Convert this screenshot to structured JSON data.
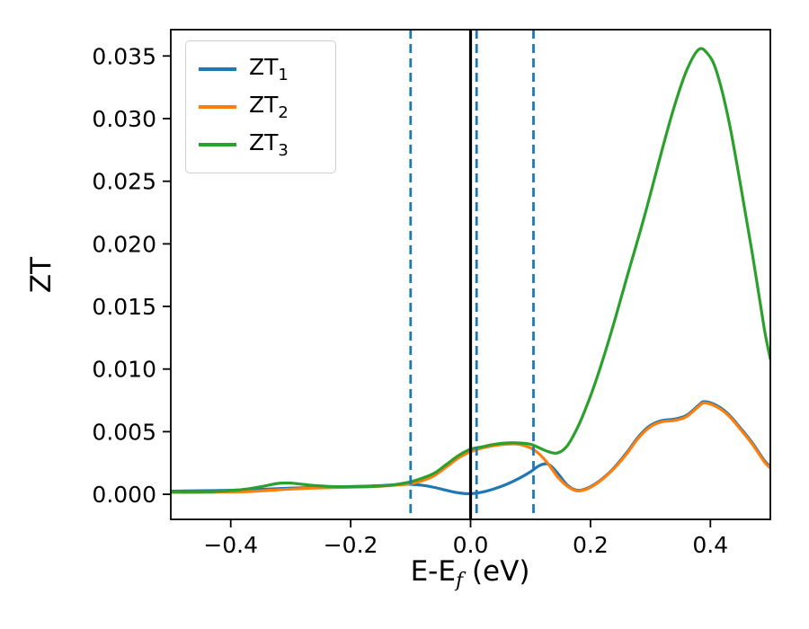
{
  "figure_bg": "#ffffff",
  "chart_data": {
    "type": "line",
    "title": "",
    "ylabel": "ZT",
    "xlabel_parts": {
      "pre": "E-E",
      "sub": "f",
      "post": " (eV)"
    },
    "xlim": [
      -0.5,
      0.5
    ],
    "ylim": [
      -0.002,
      0.0371
    ],
    "grid": false,
    "legend_position": "upper left",
    "x_ticks": [
      -0.4,
      -0.2,
      0.0,
      0.2,
      0.4
    ],
    "x_tick_labels": [
      "−0.4",
      "−0.2",
      "0.0",
      "0.2",
      "0.4"
    ],
    "y_ticks": [
      0.0,
      0.005,
      0.01,
      0.015,
      0.02,
      0.025,
      0.03,
      0.035
    ],
    "y_tick_labels": [
      "0.000",
      "0.005",
      "0.010",
      "0.015",
      "0.020",
      "0.025",
      "0.030",
      "0.035"
    ],
    "vlines": [
      {
        "x": -0.1,
        "style": "dashed",
        "color": "#1f77b4"
      },
      {
        "x": 0.0,
        "style": "solid",
        "color": "#000000"
      },
      {
        "x": 0.01,
        "style": "dashed",
        "color": "#1f77b4"
      },
      {
        "x": 0.105,
        "style": "dashed",
        "color": "#1f77b4"
      }
    ],
    "series": [
      {
        "name": "ZT1",
        "label_base": "ZT",
        "label_sub": "1",
        "color": "#1f77b4",
        "points": [
          [
            -0.5,
            0.00025
          ],
          [
            -0.46,
            0.00028
          ],
          [
            -0.42,
            0.0003
          ],
          [
            -0.38,
            0.00035
          ],
          [
            -0.34,
            0.00042
          ],
          [
            -0.3,
            0.0005
          ],
          [
            -0.26,
            0.00055
          ],
          [
            -0.22,
            0.0006
          ],
          [
            -0.18,
            0.00065
          ],
          [
            -0.15,
            0.0007
          ],
          [
            -0.12,
            0.00078
          ],
          [
            -0.1,
            0.0008
          ],
          [
            -0.08,
            0.00072
          ],
          [
            -0.06,
            0.00055
          ],
          [
            -0.04,
            0.00032
          ],
          [
            -0.02,
            0.00012
          ],
          [
            0.0,
            5e-05
          ],
          [
            0.02,
            0.00018
          ],
          [
            0.04,
            0.00045
          ],
          [
            0.06,
            0.0008
          ],
          [
            0.08,
            0.00125
          ],
          [
            0.1,
            0.0018
          ],
          [
            0.115,
            0.0023
          ],
          [
            0.13,
            0.0024
          ],
          [
            0.145,
            0.0017
          ],
          [
            0.16,
            0.0008
          ],
          [
            0.175,
            0.00035
          ],
          [
            0.19,
            0.0004
          ],
          [
            0.21,
            0.0009
          ],
          [
            0.235,
            0.0019
          ],
          [
            0.26,
            0.0033
          ],
          [
            0.28,
            0.0046
          ],
          [
            0.3,
            0.0055
          ],
          [
            0.32,
            0.0059
          ],
          [
            0.34,
            0.006
          ],
          [
            0.36,
            0.0063
          ],
          [
            0.38,
            0.0071
          ],
          [
            0.39,
            0.0074
          ],
          [
            0.41,
            0.0071
          ],
          [
            0.43,
            0.0064
          ],
          [
            0.45,
            0.0053
          ],
          [
            0.47,
            0.0041
          ],
          [
            0.49,
            0.0027
          ],
          [
            0.5,
            0.0022
          ]
        ]
      },
      {
        "name": "ZT2",
        "label_base": "ZT",
        "label_sub": "2",
        "color": "#ff7f0e",
        "points": [
          [
            -0.5,
            0.00015
          ],
          [
            -0.46,
            0.00015
          ],
          [
            -0.42,
            0.00018
          ],
          [
            -0.38,
            0.0002
          ],
          [
            -0.34,
            0.0003
          ],
          [
            -0.3,
            0.00042
          ],
          [
            -0.26,
            0.0005
          ],
          [
            -0.22,
            0.00055
          ],
          [
            -0.18,
            0.0006
          ],
          [
            -0.15,
            0.00065
          ],
          [
            -0.12,
            0.00075
          ],
          [
            -0.1,
            0.00085
          ],
          [
            -0.08,
            0.0011
          ],
          [
            -0.06,
            0.0015
          ],
          [
            -0.04,
            0.0022
          ],
          [
            -0.02,
            0.0029
          ],
          [
            0.0,
            0.0034
          ],
          [
            0.02,
            0.0037
          ],
          [
            0.04,
            0.0039
          ],
          [
            0.06,
            0.004
          ],
          [
            0.08,
            0.004
          ],
          [
            0.1,
            0.0037
          ],
          [
            0.115,
            0.0032
          ],
          [
            0.13,
            0.0024
          ],
          [
            0.145,
            0.0014
          ],
          [
            0.16,
            0.0007
          ],
          [
            0.175,
            0.0003
          ],
          [
            0.19,
            0.00035
          ],
          [
            0.21,
            0.00085
          ],
          [
            0.235,
            0.00185
          ],
          [
            0.26,
            0.0032
          ],
          [
            0.28,
            0.0045
          ],
          [
            0.3,
            0.0054
          ],
          [
            0.32,
            0.0058
          ],
          [
            0.34,
            0.0059
          ],
          [
            0.36,
            0.0062
          ],
          [
            0.38,
            0.007
          ],
          [
            0.39,
            0.0073
          ],
          [
            0.41,
            0.007
          ],
          [
            0.43,
            0.0063
          ],
          [
            0.45,
            0.0052
          ],
          [
            0.47,
            0.004
          ],
          [
            0.49,
            0.0026
          ],
          [
            0.5,
            0.0021
          ]
        ]
      },
      {
        "name": "ZT3",
        "label_base": "ZT",
        "label_sub": "3",
        "color": "#2ca02c",
        "points": [
          [
            -0.5,
            0.0002
          ],
          [
            -0.46,
            0.0002
          ],
          [
            -0.43,
            0.00022
          ],
          [
            -0.4,
            0.0003
          ],
          [
            -0.37,
            0.00045
          ],
          [
            -0.34,
            0.0007
          ],
          [
            -0.32,
            0.00088
          ],
          [
            -0.3,
            0.0009
          ],
          [
            -0.28,
            0.0008
          ],
          [
            -0.26,
            0.0007
          ],
          [
            -0.23,
            0.00062
          ],
          [
            -0.2,
            0.0006
          ],
          [
            -0.17,
            0.00062
          ],
          [
            -0.14,
            0.0007
          ],
          [
            -0.12,
            0.00082
          ],
          [
            -0.1,
            0.001
          ],
          [
            -0.08,
            0.0013
          ],
          [
            -0.06,
            0.0017
          ],
          [
            -0.04,
            0.0024
          ],
          [
            -0.02,
            0.0031
          ],
          [
            0.0,
            0.0036
          ],
          [
            0.02,
            0.0038
          ],
          [
            0.04,
            0.004
          ],
          [
            0.06,
            0.0041
          ],
          [
            0.08,
            0.0041
          ],
          [
            0.1,
            0.004
          ],
          [
            0.115,
            0.0037
          ],
          [
            0.13,
            0.0034
          ],
          [
            0.145,
            0.0033
          ],
          [
            0.16,
            0.0038
          ],
          [
            0.175,
            0.005
          ],
          [
            0.19,
            0.0066
          ],
          [
            0.21,
            0.0092
          ],
          [
            0.235,
            0.013
          ],
          [
            0.26,
            0.0172
          ],
          [
            0.29,
            0.0222
          ],
          [
            0.32,
            0.0276
          ],
          [
            0.34,
            0.031
          ],
          [
            0.36,
            0.0338
          ],
          [
            0.38,
            0.0355
          ],
          [
            0.395,
            0.0352
          ],
          [
            0.41,
            0.0338
          ],
          [
            0.43,
            0.03
          ],
          [
            0.45,
            0.0248
          ],
          [
            0.47,
            0.0192
          ],
          [
            0.49,
            0.0132
          ],
          [
            0.5,
            0.0108
          ]
        ]
      }
    ]
  }
}
